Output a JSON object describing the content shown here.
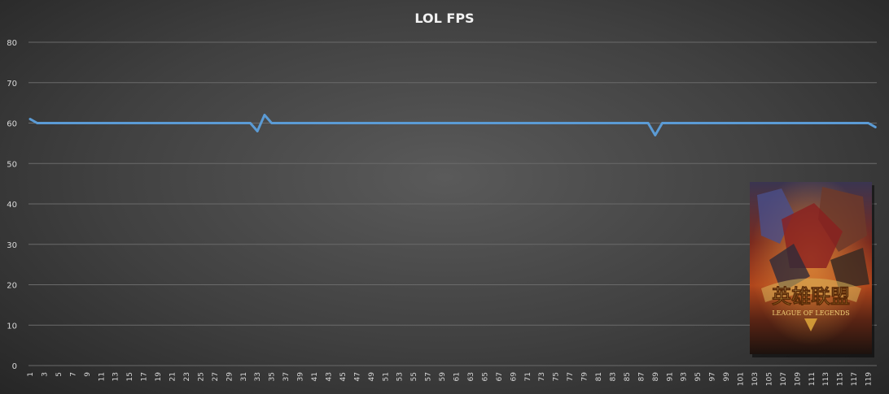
{
  "chart_data": {
    "type": "line",
    "title": "LOL FPS",
    "xlabel": "",
    "ylabel": "",
    "ylim": [
      0,
      80
    ],
    "yticks": [
      "0",
      "10",
      "20",
      "30",
      "40",
      "50",
      "60",
      "70",
      "80"
    ],
    "x_tick_labels": [
      "1",
      "3",
      "5",
      "7",
      "9",
      "11",
      "13",
      "15",
      "17",
      "19",
      "21",
      "23",
      "25",
      "27",
      "29",
      "31",
      "33",
      "35",
      "37",
      "39",
      "41",
      "43",
      "45",
      "47",
      "49",
      "51",
      "53",
      "55",
      "57",
      "59",
      "61",
      "63",
      "65",
      "67",
      "69",
      "71",
      "73",
      "75",
      "77",
      "79",
      "81",
      "83",
      "85",
      "87",
      "89",
      "91",
      "93",
      "95",
      "97",
      "99",
      "101",
      "103",
      "105",
      "107",
      "109",
      "111",
      "113",
      "115",
      "117",
      "119"
    ],
    "grid": true,
    "legend": "none",
    "series": [
      {
        "color": "#5b9bd5",
        "x": [
          1,
          2,
          3,
          4,
          5,
          6,
          7,
          8,
          9,
          10,
          11,
          12,
          13,
          14,
          15,
          16,
          17,
          18,
          19,
          20,
          21,
          22,
          23,
          24,
          25,
          26,
          27,
          28,
          29,
          30,
          31,
          32,
          33,
          34,
          35,
          36,
          37,
          38,
          39,
          40,
          41,
          42,
          43,
          44,
          45,
          46,
          47,
          48,
          49,
          50,
          51,
          52,
          53,
          54,
          55,
          56,
          57,
          58,
          59,
          60,
          61,
          62,
          63,
          64,
          65,
          66,
          67,
          68,
          69,
          70,
          71,
          72,
          73,
          74,
          75,
          76,
          77,
          78,
          79,
          80,
          81,
          82,
          83,
          84,
          85,
          86,
          87,
          88,
          89,
          90,
          91,
          92,
          93,
          94,
          95,
          96,
          97,
          98,
          99,
          100,
          101,
          102,
          103,
          104,
          105,
          106,
          107,
          108,
          109,
          110,
          111,
          112,
          113,
          114,
          115,
          116,
          117,
          118,
          119,
          120
        ],
        "values": [
          61,
          60,
          60,
          60,
          60,
          60,
          60,
          60,
          60,
          60,
          60,
          60,
          60,
          60,
          60,
          60,
          60,
          60,
          60,
          60,
          60,
          60,
          60,
          60,
          60,
          60,
          60,
          60,
          60,
          60,
          60,
          60,
          58,
          62,
          60,
          60,
          60,
          60,
          60,
          60,
          60,
          60,
          60,
          60,
          60,
          60,
          60,
          60,
          60,
          60,
          60,
          60,
          60,
          60,
          60,
          60,
          60,
          60,
          60,
          60,
          60,
          60,
          60,
          60,
          60,
          60,
          60,
          60,
          60,
          60,
          60,
          60,
          60,
          60,
          60,
          60,
          60,
          60,
          60,
          60,
          60,
          60,
          60,
          60,
          60,
          60,
          60,
          60,
          57,
          60,
          60,
          60,
          60,
          60,
          60,
          60,
          60,
          60,
          60,
          60,
          60,
          60,
          60,
          60,
          60,
          60,
          60,
          60,
          60,
          60,
          60,
          60,
          60,
          60,
          60,
          60,
          60,
          60,
          60,
          59
        ]
      }
    ]
  },
  "decor": {
    "poster_title": "英雄联盟",
    "poster_subtitle": "LEAGUE OF LEGENDS"
  }
}
